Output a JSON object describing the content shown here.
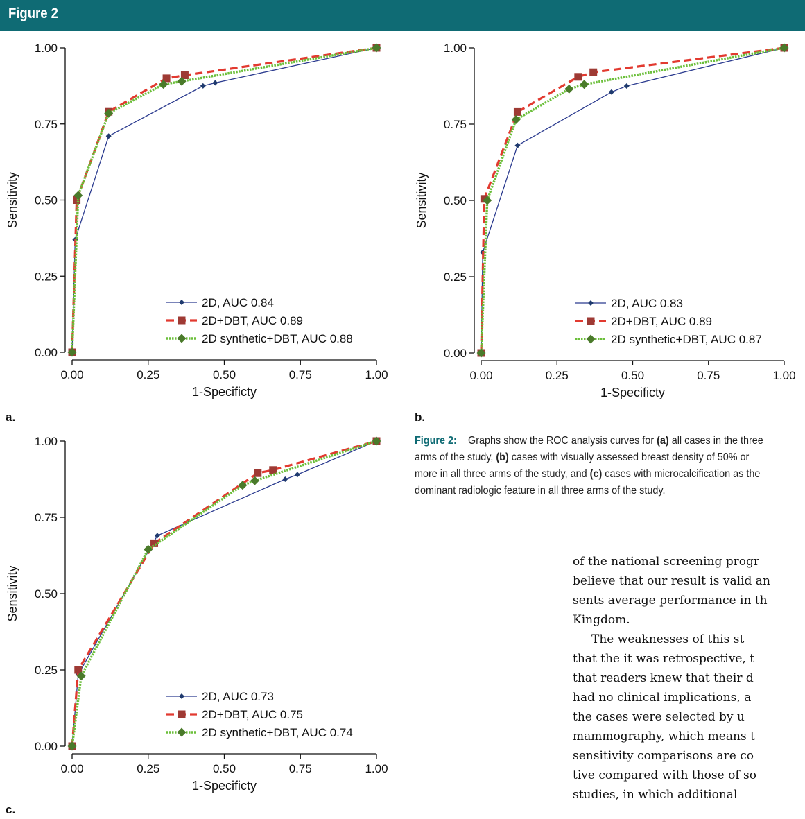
{
  "figure_title": "Figure 2",
  "caption": {
    "label": "Figure 2:",
    "s1": "Graphs show the ROC analysis curves for ",
    "a": "(a)",
    "s2": " all cases in the three arms of the study, ",
    "b": "(b)",
    "s3": " cases with visually assessed breast density of 50% or more in all three arms of the study, and ",
    "c": "(c)",
    "s4": " cases with microcalcification as the dominant radiologic feature in all three arms of the study."
  },
  "body_text": [
    "of the national screening progr",
    "believe that our result is valid an",
    "sents average performance in th",
    "Kingdom.",
    "    The weaknesses of this st",
    "that the it was retrospective, t",
    "that readers knew that their d",
    "had no clinical implications, a",
    "the cases were selected by u",
    "mammography, which means t",
    "sensitivity comparisons are co",
    "tive compared with those of so",
    "studies,  in  which  additional"
  ],
  "colors": {
    "header": "#0f6b74",
    "2D": "#2b3b8f",
    "2D+DBT": "#e23a30",
    "2D synthetic+DBT": "#6bbf3a",
    "marker_2D": "#1f3a6e",
    "marker_2D+DBT": "#9e3a34",
    "marker_synth": "#4a7a2a"
  },
  "chart_data": [
    {
      "type": "line",
      "panel_label": "a.",
      "xlabel": "1-Specificty",
      "ylabel": "Sensitivity",
      "xlim": [
        0,
        1
      ],
      "ylim": [
        0,
        1
      ],
      "xticks": [
        "0.00",
        "0.25",
        "0.50",
        "0.75",
        "1.00"
      ],
      "yticks": [
        "0.00",
        "0.25",
        "0.50",
        "0.75",
        "1.00"
      ],
      "legend_position": "bottom-right",
      "series": [
        {
          "name": "2D, AUC 0.84",
          "x": [
            0,
            0.01,
            0.12,
            0.43,
            0.47,
            1
          ],
          "y": [
            0,
            0.37,
            0.71,
            0.875,
            0.885,
            1
          ]
        },
        {
          "name": "2D+DBT, AUC 0.89",
          "x": [
            0,
            0.015,
            0.12,
            0.31,
            0.37,
            1
          ],
          "y": [
            0,
            0.5,
            0.79,
            0.9,
            0.91,
            1
          ]
        },
        {
          "name": "2D synthetic+DBT, AUC 0.88",
          "x": [
            0,
            0.02,
            0.12,
            0.3,
            0.36,
            1
          ],
          "y": [
            0,
            0.515,
            0.785,
            0.88,
            0.89,
            1
          ]
        }
      ]
    },
    {
      "type": "line",
      "panel_label": "b.",
      "xlabel": "1-Specificty",
      "ylabel": "Sensitivity",
      "xlim": [
        0,
        1
      ],
      "ylim": [
        0,
        1
      ],
      "xticks": [
        "0.00",
        "0.25",
        "0.50",
        "0.75",
        "1.00"
      ],
      "yticks": [
        "0.00",
        "0.25",
        "0.50",
        "0.75",
        "1.00"
      ],
      "legend_position": "bottom-right",
      "series": [
        {
          "name": "2D, AUC 0.83",
          "x": [
            0,
            0.005,
            0.12,
            0.43,
            0.48,
            1
          ],
          "y": [
            0,
            0.33,
            0.68,
            0.855,
            0.875,
            1
          ]
        },
        {
          "name": "2D+DBT, AUC 0.89",
          "x": [
            0,
            0.01,
            0.12,
            0.32,
            0.37,
            1
          ],
          "y": [
            0,
            0.505,
            0.79,
            0.905,
            0.92,
            1
          ]
        },
        {
          "name": "2D synthetic+DBT, AUC 0.87",
          "x": [
            0,
            0.02,
            0.115,
            0.29,
            0.34,
            1
          ],
          "y": [
            0,
            0.5,
            0.765,
            0.865,
            0.88,
            1
          ]
        }
      ]
    },
    {
      "type": "line",
      "panel_label": "c.",
      "xlabel": "1-Specificty",
      "ylabel": "Sensitivity",
      "xlim": [
        0,
        1
      ],
      "ylim": [
        0,
        1
      ],
      "xticks": [
        "0.00",
        "0.25",
        "0.50",
        "0.75",
        "1.00"
      ],
      "yticks": [
        "0.00",
        "0.25",
        "0.50",
        "0.75",
        "1.00"
      ],
      "legend_position": "bottom-right",
      "series": [
        {
          "name": "2D, AUC 0.73",
          "x": [
            0,
            0.02,
            0.28,
            0.7,
            0.74,
            1
          ],
          "y": [
            0,
            0.235,
            0.69,
            0.875,
            0.89,
            1
          ]
        },
        {
          "name": "2D+DBT, AUC 0.75",
          "x": [
            0,
            0.02,
            0.27,
            0.61,
            0.66,
            1
          ],
          "y": [
            0,
            0.25,
            0.665,
            0.895,
            0.905,
            1
          ]
        },
        {
          "name": "2D synthetic+DBT, AUC 0.74",
          "x": [
            0,
            0.03,
            0.25,
            0.56,
            0.6,
            1
          ],
          "y": [
            0,
            0.23,
            0.645,
            0.855,
            0.87,
            1
          ]
        }
      ]
    }
  ]
}
